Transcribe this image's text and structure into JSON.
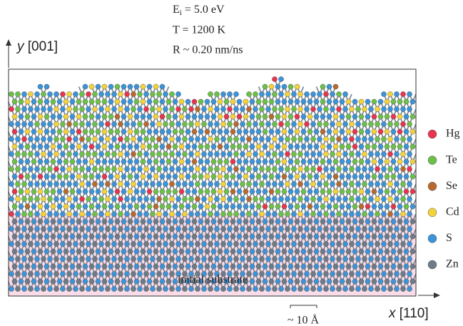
{
  "conditions": [
    {
      "symbol": "E",
      "subscript": "i",
      "text": " = 5.0 eV"
    },
    {
      "text": "T = 1200 K"
    },
    {
      "text": "R ~ 0.20 nm/ns"
    }
  ],
  "axes": {
    "y": {
      "variable": "y",
      "direction": "[001]"
    },
    "x": {
      "variable": "x",
      "direction": "[110]"
    }
  },
  "legend": [
    {
      "label": "Hg",
      "color": "#e8344e"
    },
    {
      "label": "Te",
      "color": "#6cc04a"
    },
    {
      "label": "Se",
      "color": "#b8692e"
    },
    {
      "label": "Cd",
      "color": "#f4d23c"
    },
    {
      "label": "S",
      "color": "#3c93d8"
    },
    {
      "label": "Zn",
      "color": "#6e7a86"
    }
  ],
  "substrate_label": "initial substrate",
  "scale_bar": "~ 10 Å"
}
